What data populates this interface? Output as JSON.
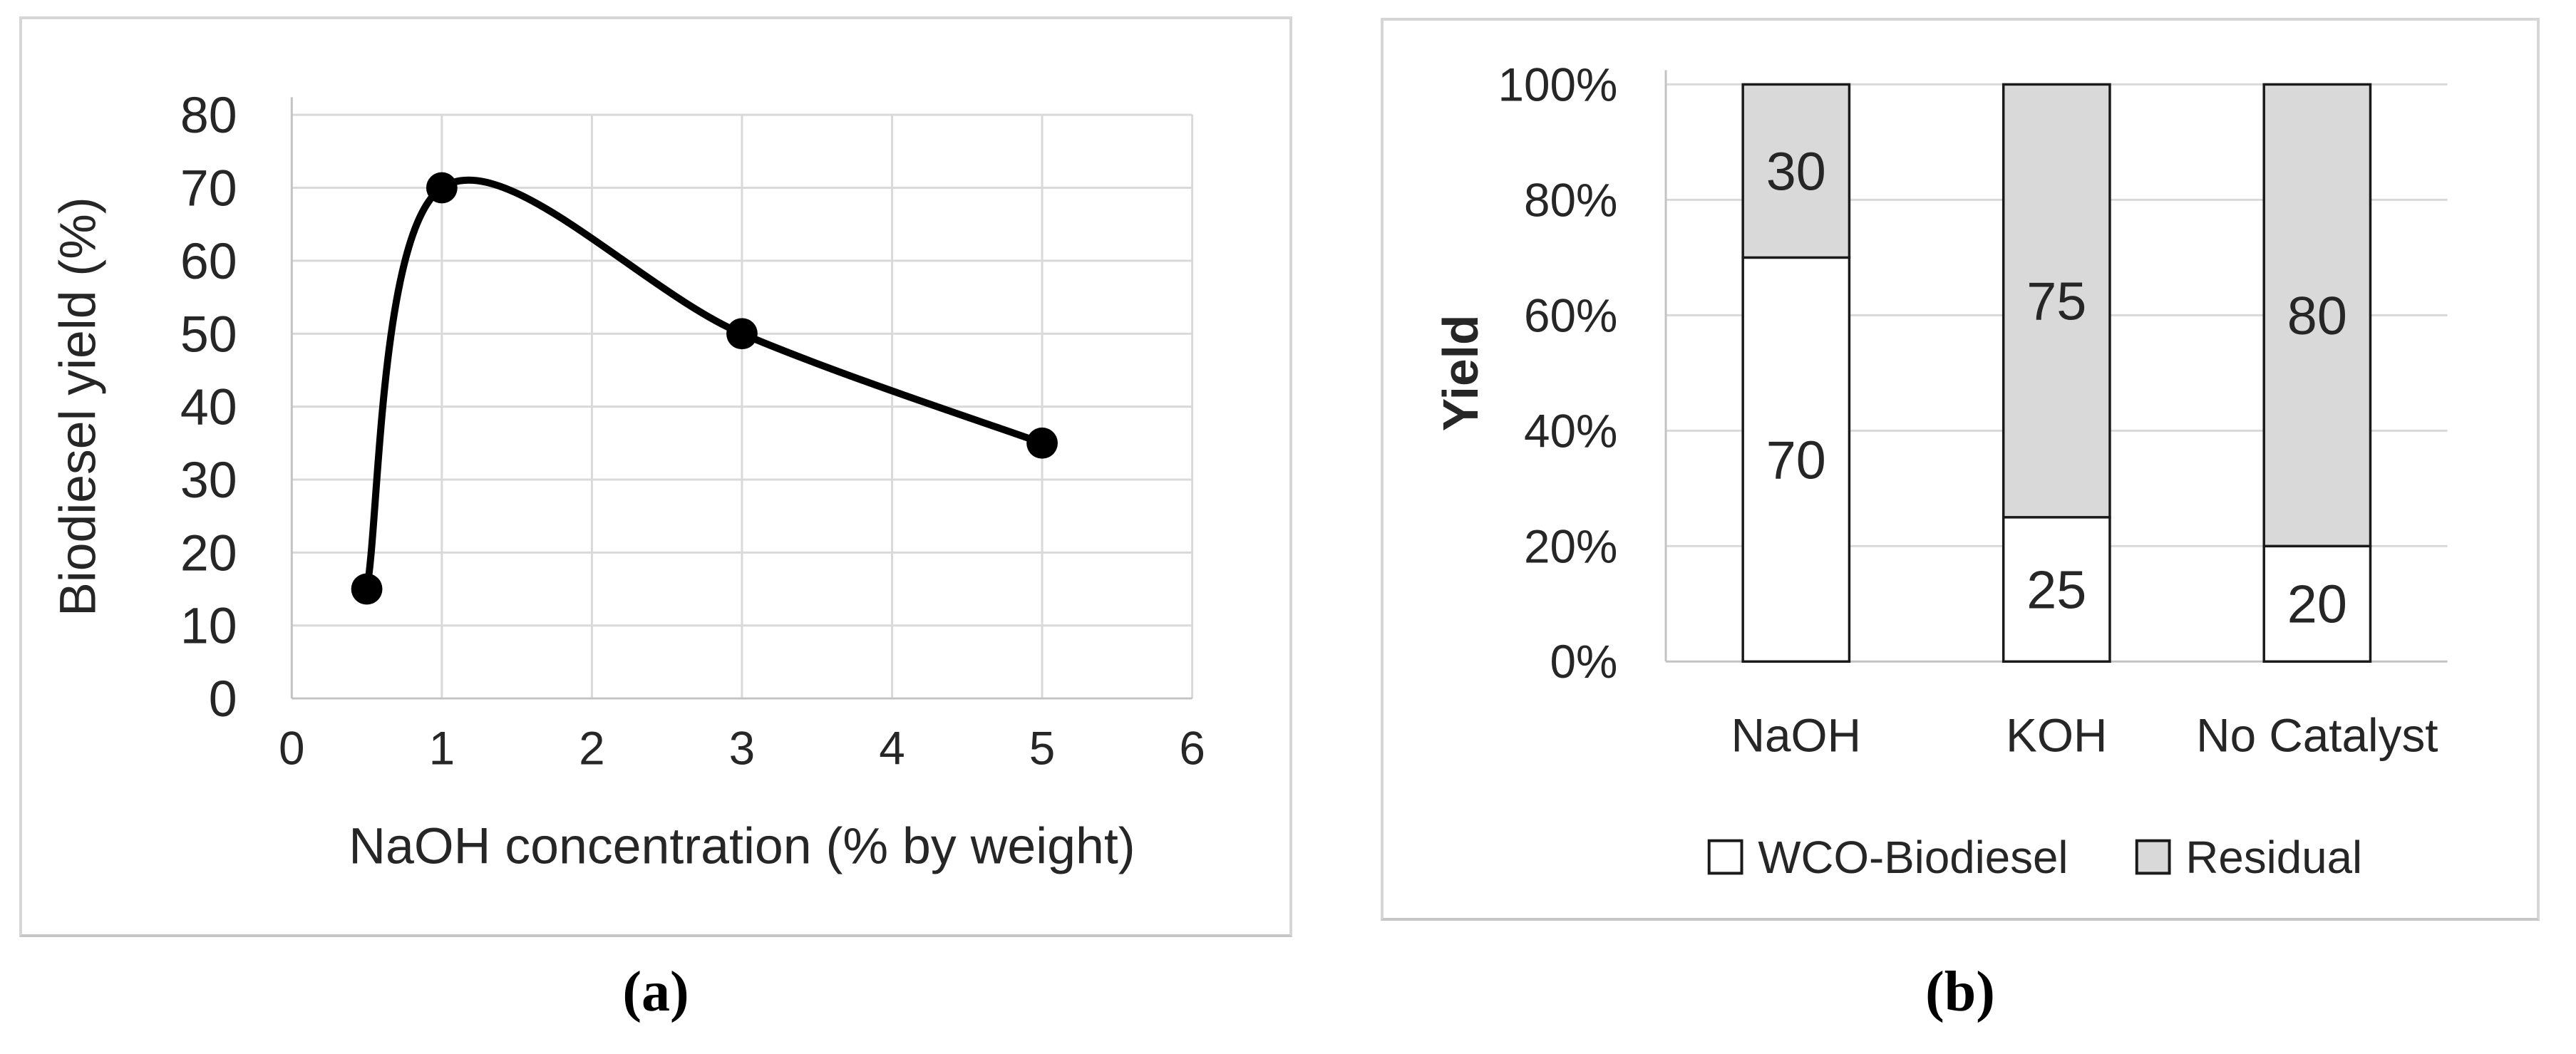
{
  "figure": {
    "caption_a": "(a)",
    "caption_b": "(b)"
  },
  "colors": {
    "line": "#000000",
    "marker": "#000000",
    "gridline": "#d9d9d9",
    "axis": "#c3c3c3",
    "bar_border": "#1a1a1a",
    "residual_fill": "#d9d9d9",
    "biodiesel_fill": "#ffffff",
    "text": "#262626"
  },
  "chart_data": [
    {
      "panel": "a",
      "type": "line",
      "smooth": true,
      "xlabel": "NaOH concentration (% by weight)",
      "ylabel": "Biodiesel yield (%)",
      "x": [
        0.5,
        1,
        3,
        5
      ],
      "y": [
        15,
        70,
        50,
        35
      ],
      "xlim": [
        0,
        6
      ],
      "ylim": [
        0,
        80
      ],
      "xticks": [
        0,
        1,
        2,
        3,
        4,
        5,
        6
      ],
      "yticks": [
        0,
        10,
        20,
        30,
        40,
        50,
        60,
        70,
        80
      ],
      "grid": true,
      "legend_position": "none"
    },
    {
      "panel": "b",
      "type": "bar",
      "stacked": true,
      "ylabel": "Yield",
      "categories": [
        "NaOH",
        "KOH",
        "No Catalyst"
      ],
      "series": [
        {
          "name": "WCO-Biodiesel",
          "values": [
            70,
            25,
            20
          ],
          "fill": "#ffffff"
        },
        {
          "name": "Residual",
          "values": [
            30,
            75,
            80
          ],
          "fill": "#d9d9d9"
        }
      ],
      "ylim": [
        0,
        100
      ],
      "yticks": [
        0,
        20,
        40,
        60,
        80,
        100
      ],
      "ytick_suffix": "%",
      "grid": true,
      "legend_position": "bottom"
    }
  ]
}
